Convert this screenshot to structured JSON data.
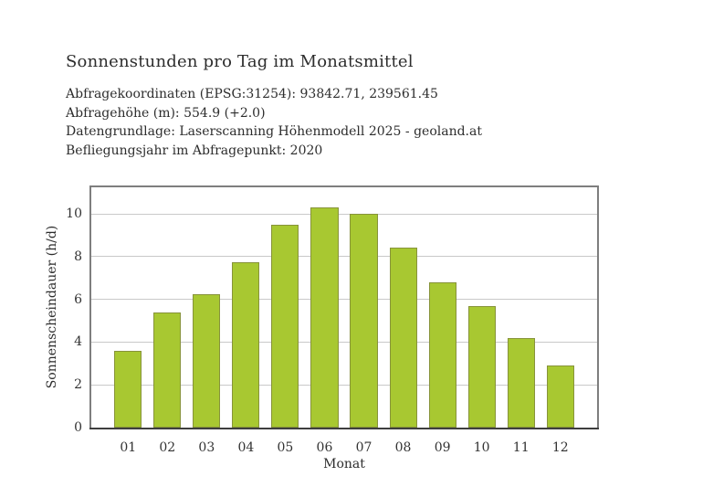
{
  "header": {
    "title": "Sonnenstunden pro Tag im Monatsmittel",
    "meta_lines": [
      "Abfragekoordinaten (EPSG:31254): 93842.71, 239561.45",
      "Abfragehöhe (m): 554.9 (+2.0)",
      "Datengrundlage: Laserscanning Höhenmodell 2025 - geoland.at",
      "Befliegungsjahr im Abfragepunkt: 2020"
    ]
  },
  "chart_data": {
    "type": "bar",
    "title": "Sonnenstunden pro Tag im Monatsmittel",
    "categories": [
      "01",
      "02",
      "03",
      "04",
      "05",
      "06",
      "07",
      "08",
      "09",
      "10",
      "11",
      "12"
    ],
    "values": [
      3.6,
      5.4,
      6.25,
      7.75,
      9.5,
      10.3,
      10.0,
      8.4,
      6.8,
      5.7,
      4.2,
      2.9
    ],
    "xlabel": "Monat",
    "ylabel": "Sonnenscheindauer (h/d)",
    "ylim": [
      0,
      11.24
    ],
    "xlim": [
      0.065,
      12.935
    ],
    "yticks": [
      0,
      2,
      4,
      6,
      8,
      10
    ],
    "grid": true,
    "legend": "none",
    "bar_width_units": 0.7,
    "colors": {
      "bar_fill": "#a8c831",
      "bar_edge": "#87933a",
      "gridline": "#c9c9c9",
      "plot_border": "#7e7e7e",
      "x_axis": "#3e3e3e",
      "text": "#2d2d2d"
    }
  }
}
